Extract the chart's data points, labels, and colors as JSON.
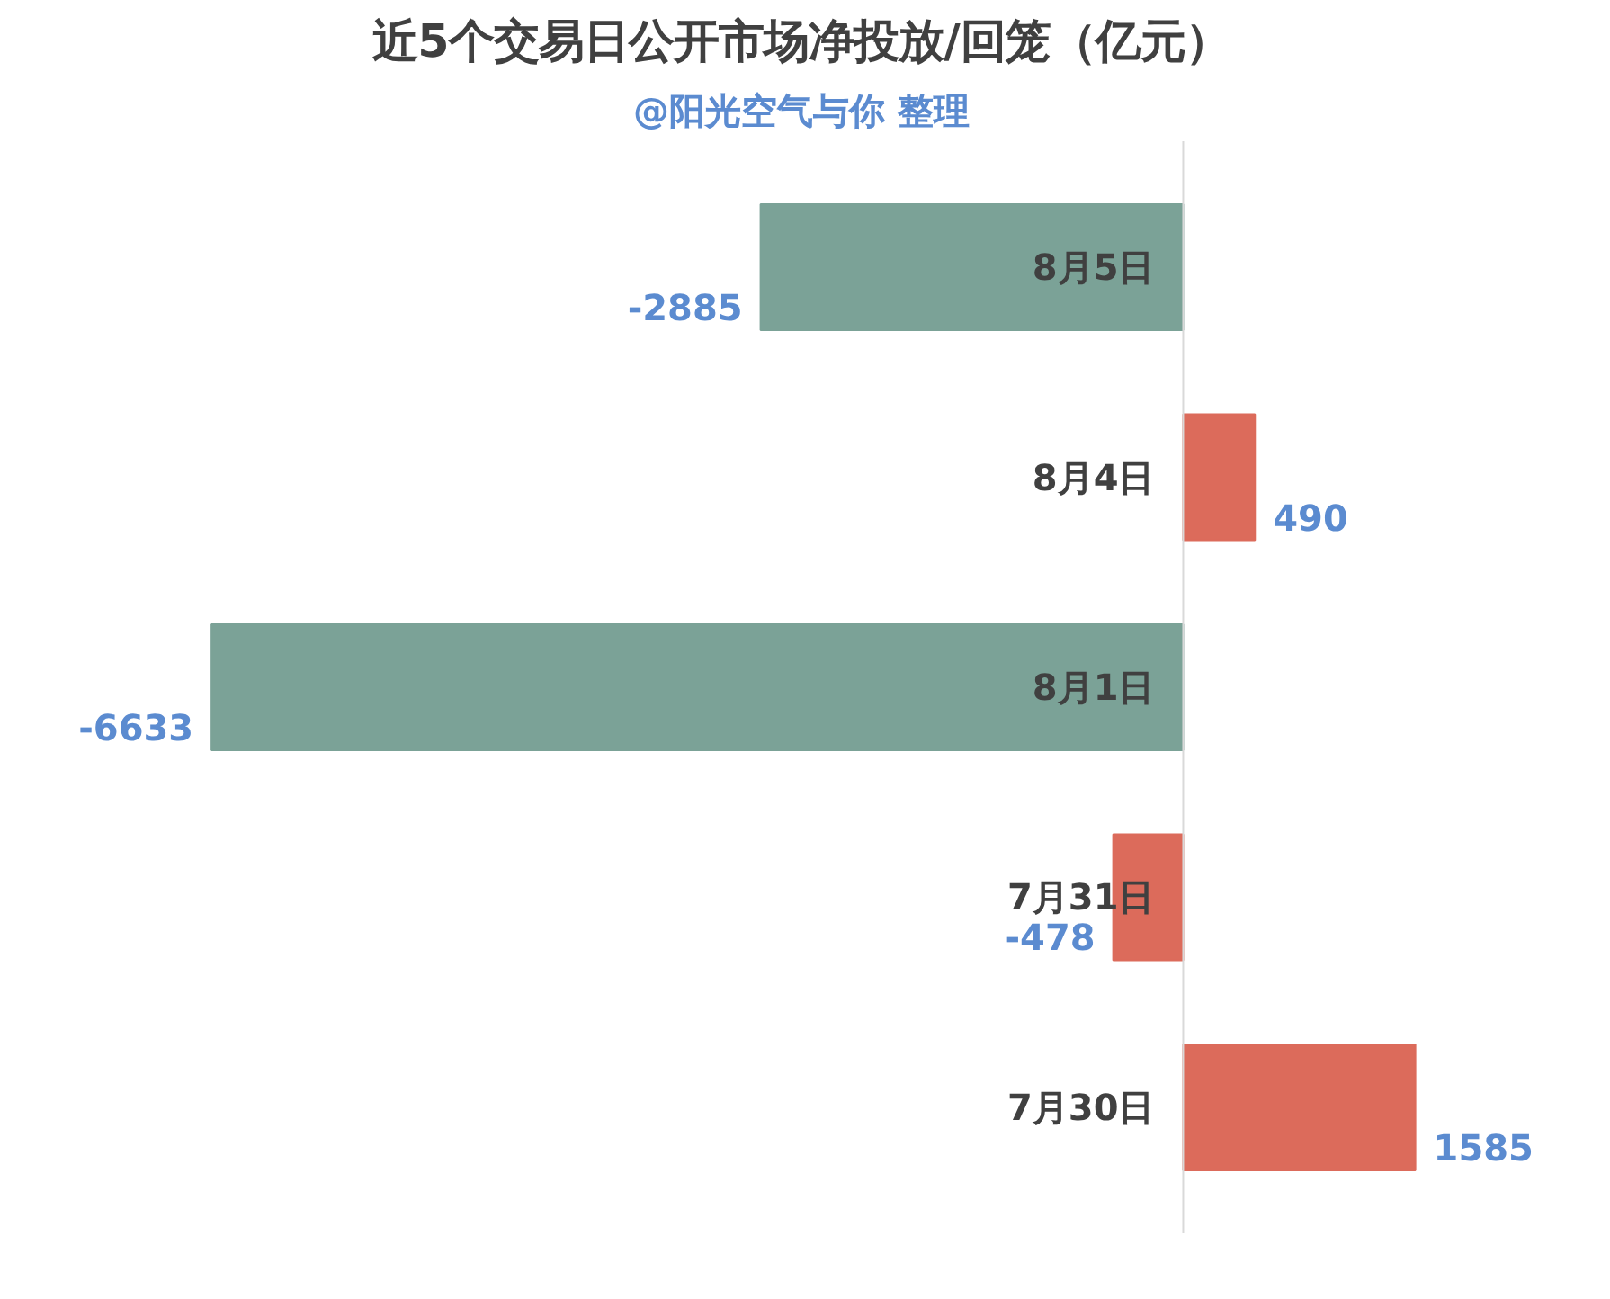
{
  "chart_data": {
    "type": "bar",
    "orientation": "horizontal",
    "title": "近5个交易日公开市场净投放/回笼（亿元）",
    "subtitle": "@阳光空气与你 整理",
    "categories": [
      "8月5日",
      "8月4日",
      "8月1日",
      "7月31日",
      "7月30日"
    ],
    "values": [
      -2885,
      490,
      -6633,
      -478,
      1585
    ],
    "colors": [
      "#7ba297",
      "#dc6b5b",
      "#7ba297",
      "#dc6b5b",
      "#dc6b5b"
    ],
    "data_labels": true,
    "grid": false
  }
}
